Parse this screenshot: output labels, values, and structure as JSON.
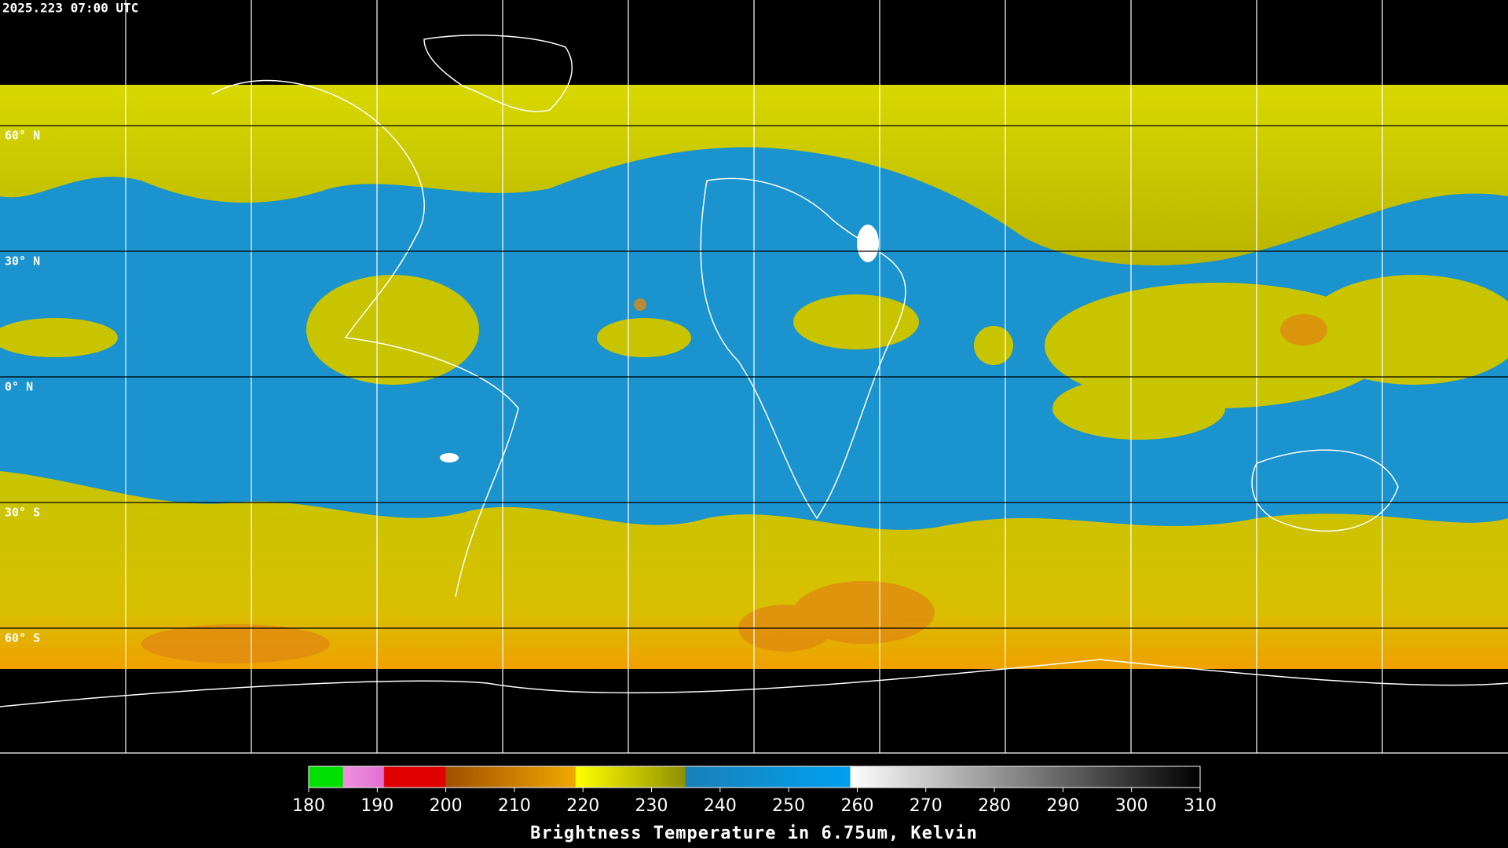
{
  "timestamp": "2025.223 07:00 UTC",
  "latitude_labels": [
    "60° N",
    "30° N",
    "0° N",
    "30° S",
    "60° S"
  ],
  "colorbar": {
    "ticks": [
      180,
      190,
      200,
      210,
      220,
      230,
      240,
      250,
      260,
      270,
      280,
      290,
      300,
      310
    ],
    "label": "Brightness Temperature in 6.75um, Kelvin"
  }
}
